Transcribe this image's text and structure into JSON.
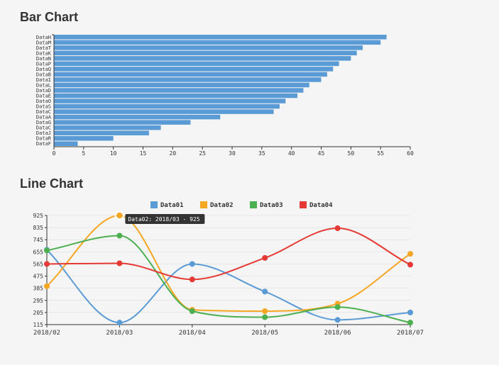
{
  "bar_chart": {
    "title": "Bar Chart",
    "type": "bar-horizontal",
    "bar_color": "#5b9bd5",
    "background_color": "#f5f5f5",
    "categories": [
      "DataH",
      "DataM",
      "DataT",
      "DataK",
      "DataN",
      "DataP",
      "DataQ",
      "DataB",
      "DataI",
      "DataL",
      "DataD",
      "DataE",
      "DataO",
      "DataS",
      "DataC",
      "DataA",
      "DataG",
      "DataC",
      "DataJ",
      "DataR",
      "DataF"
    ],
    "values": [
      56,
      55,
      52,
      51,
      50,
      48,
      47,
      46,
      45,
      43,
      42,
      41,
      39,
      38,
      37,
      28,
      23,
      18,
      16,
      10,
      4
    ],
    "xlim": [
      0,
      60
    ],
    "xtick_step": 5,
    "xticks": [
      0,
      5,
      10,
      15,
      20,
      25,
      30,
      35,
      40,
      45,
      50,
      55,
      60
    ],
    "bar_gap": 1,
    "axis_color": "#333333",
    "label_fontsize": 7,
    "tick_fontsize": 8
  },
  "line_chart": {
    "title": "Line Chart",
    "type": "line",
    "background_color": "#f5f5f5",
    "x_categories": [
      "2018/02",
      "2018/03",
      "2018/04",
      "2018/05",
      "2018/06",
      "2018/07"
    ],
    "ylim": [
      115,
      925
    ],
    "ytick_step": 90,
    "yticks": [
      115,
      205,
      295,
      385,
      475,
      565,
      655,
      745,
      835,
      925
    ],
    "series": [
      {
        "name": "Data01",
        "color": "#5b9bd5",
        "values": [
          670,
          130,
          565,
          360,
          150,
          205
        ]
      },
      {
        "name": "Data02",
        "color": "#f5a623",
        "values": [
          400,
          925,
          225,
          215,
          270,
          640
        ]
      },
      {
        "name": "Data03",
        "color": "#4caf50",
        "values": [
          665,
          775,
          215,
          170,
          245,
          130
        ]
      },
      {
        "name": "Data04",
        "color": "#e53935",
        "values": [
          565,
          570,
          450,
          610,
          830,
          560
        ]
      }
    ],
    "marker_radius": 4,
    "line_width": 2,
    "curve": "monotone",
    "tooltip": {
      "series": "Data02",
      "x": "2018/03",
      "value": 925,
      "text": "Data02: 2018/03 - 925"
    },
    "legend_fontsize": 9,
    "tick_fontsize": 8
  }
}
